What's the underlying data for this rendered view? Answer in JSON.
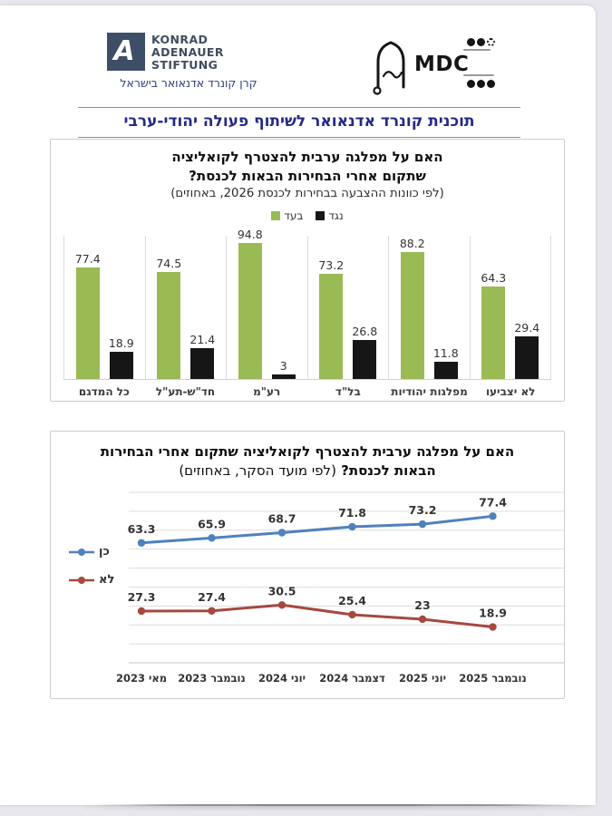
{
  "header": {
    "kas": {
      "line1": "KONRAD",
      "line2": "ADENAUER",
      "line3": "STIFTUNG",
      "hebrew": "קרן קונרד אדנאואר בישראל",
      "mark_letter": "A",
      "brand_color": "#3d4e66"
    },
    "mdc": {
      "label": "MDC"
    },
    "title": "תוכנית קונרד אדנאואר לשיתוף פעולה יהודי-ערבי",
    "title_color": "#232a85"
  },
  "chart_data": [
    {
      "type": "bar",
      "title_lines": [
        "האם על מפלגה ערבית להצטרף לקואליציה",
        "שתקום אחרי הבחירות הבאות לכנסת?"
      ],
      "subtitle": "(לפי כוונות ההצבעה בבחירות לכנסת 2026, באחוזים)",
      "categories": [
        "כל המדגם",
        "חד\"ש-תע\"ל",
        "רע\"מ",
        "בל\"ד",
        "מפלגות יהודיות",
        "לא יצביעו"
      ],
      "series": [
        {
          "name": "בעד",
          "color": "#9aba54",
          "values": [
            77.4,
            74.5,
            94.8,
            73.2,
            88.2,
            64.3
          ]
        },
        {
          "name": "נגד",
          "color": "#161616",
          "values": [
            18.9,
            21.4,
            3,
            26.8,
            11.8,
            29.4
          ]
        }
      ],
      "ylim": [
        0,
        100
      ],
      "grid": "vertical-category-separators",
      "legend_position": "top"
    },
    {
      "type": "line",
      "title_line1": "האם על מפלגה ערבית להצטרף לקואליציה שתקום אחרי הבחירות",
      "title_line2_bold": "הבאות לכנסת?",
      "title_line2_normal": "(לפי מועד הסקר, באחוזים)",
      "x": [
        "מאי 2023",
        "נובמבר 2023",
        "יוני 2024",
        "דצמבר 2024",
        "יוני 2025",
        "נובמבר 2025"
      ],
      "series": [
        {
          "name": "כן",
          "color": "#4f81bd",
          "values": [
            63.3,
            65.9,
            68.7,
            71.8,
            73.2,
            77.4
          ]
        },
        {
          "name": "לא",
          "color": "#a5493f",
          "values": [
            27.3,
            27.4,
            30.5,
            25.4,
            23,
            18.9
          ]
        }
      ],
      "ylim": [
        0,
        90
      ],
      "grid": true,
      "legend_position": "left"
    }
  ]
}
